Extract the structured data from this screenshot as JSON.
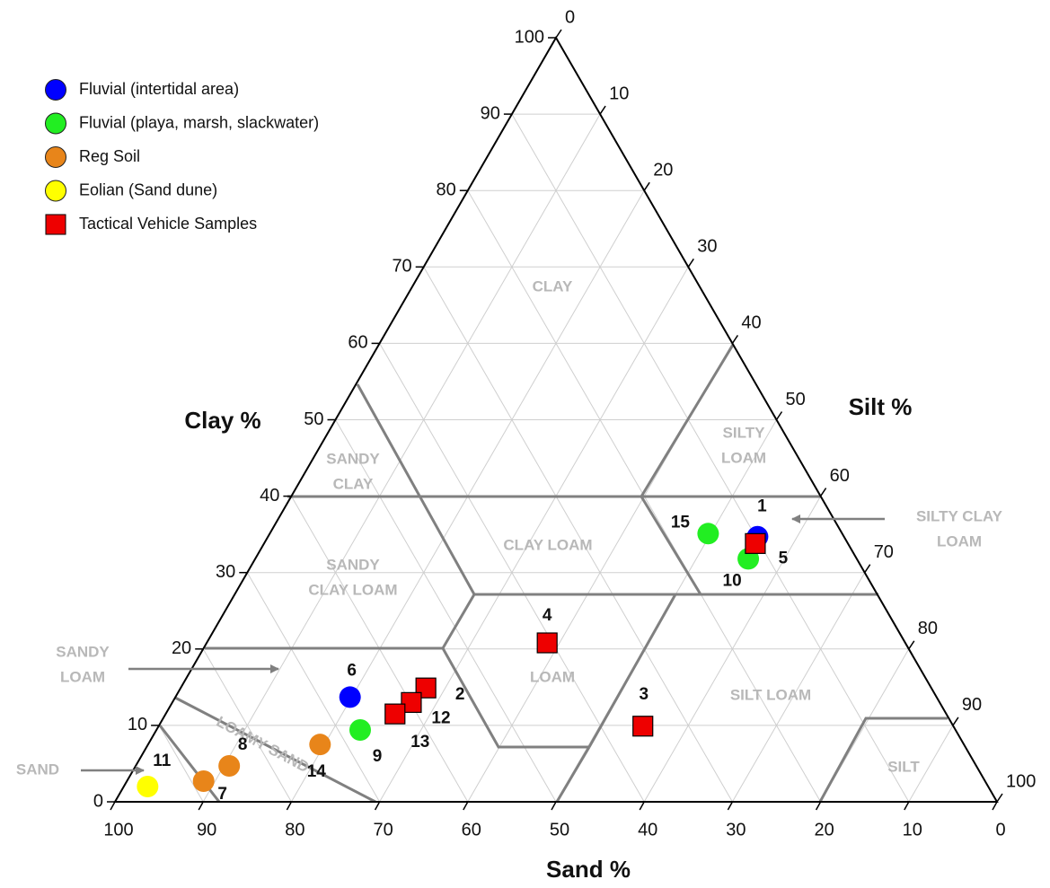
{
  "chart_data": {
    "type": "ternary",
    "axis_labels": {
      "clay": "Clay %",
      "silt": "Silt %",
      "sand": "Sand %"
    },
    "clay_ticks": [
      0,
      10,
      20,
      30,
      40,
      50,
      60,
      70,
      80,
      90,
      100
    ],
    "silt_ticks": [
      0,
      10,
      20,
      30,
      40,
      50,
      60,
      70,
      80,
      90,
      100
    ],
    "sand_ticks": [
      0,
      10,
      20,
      30,
      40,
      50,
      60,
      70,
      80,
      90,
      100
    ],
    "grid": true,
    "legend": "top-left",
    "series": [
      {
        "name": "Fluvial (intertidal area)",
        "color": "#0000ff",
        "marker": "circle",
        "points": [
          {
            "label": "1",
            "sand": 9.8,
            "clay": 34.7,
            "silt": 55.5
          },
          {
            "label": "6",
            "sand": 66.5,
            "clay": 13.7,
            "silt": 19.8
          }
        ]
      },
      {
        "name": "Fluvial (playa, marsh, slackwater)",
        "color": "#22ee22",
        "marker": "circle",
        "points": [
          {
            "label": "15",
            "sand": 15.2,
            "clay": 35.1,
            "silt": 49.7
          },
          {
            "label": "10",
            "sand": 12.3,
            "clay": 31.8,
            "silt": 55.9
          },
          {
            "label": "9",
            "sand": 67.5,
            "clay": 9.4,
            "silt": 23.1
          }
        ]
      },
      {
        "name": "Reg Soil",
        "color": "#e8851a",
        "marker": "circle",
        "points": [
          {
            "label": "14",
            "sand": 73.0,
            "clay": 7.5,
            "silt": 19.5
          },
          {
            "label": "8",
            "sand": 84.7,
            "clay": 4.7,
            "silt": 10.6
          },
          {
            "label": "7",
            "sand": 88.6,
            "clay": 2.7,
            "silt": 8.7
          }
        ]
      },
      {
        "name": "Eolian (Sand dune)",
        "color": "#ffff00",
        "marker": "circle",
        "points": [
          {
            "label": "11",
            "sand": 95.3,
            "clay": 2.0,
            "silt": 2.7
          }
        ]
      },
      {
        "name": "Tactical Vehicle Samples",
        "color": "#ee0000",
        "marker": "square",
        "points": [
          {
            "label": "5",
            "sand": 10.5,
            "clay": 33.8,
            "silt": 55.7
          },
          {
            "label": "4",
            "sand": 40.6,
            "clay": 20.8,
            "silt": 38.6
          },
          {
            "label": "3",
            "sand": 35.2,
            "clay": 9.9,
            "silt": 54.9
          },
          {
            "label": "2",
            "sand": 57.3,
            "clay": 14.9,
            "silt": 27.8
          },
          {
            "label": "12",
            "sand": 59.9,
            "clay": 13.0,
            "silt": 27.1
          },
          {
            "label": "13",
            "sand": 62.5,
            "clay": 11.5,
            "silt": 26.0
          }
        ]
      }
    ],
    "region_labels": [
      [
        "CLAY"
      ],
      [
        "SILTY",
        "LOAM"
      ],
      [
        "SANDY",
        "CLAY"
      ],
      [
        "CLAY LOAM"
      ],
      [
        "SANDY",
        "CLAY LOAM"
      ],
      [
        "LOAM"
      ],
      [
        "SILT LOAM"
      ],
      [
        "SILT"
      ],
      [
        "LOAMY SAND"
      ]
    ],
    "annotations": [
      [
        "SILTY CLAY",
        "LOAM"
      ],
      [
        "SANDY",
        "LOAM"
      ],
      [
        "SAND"
      ]
    ]
  }
}
